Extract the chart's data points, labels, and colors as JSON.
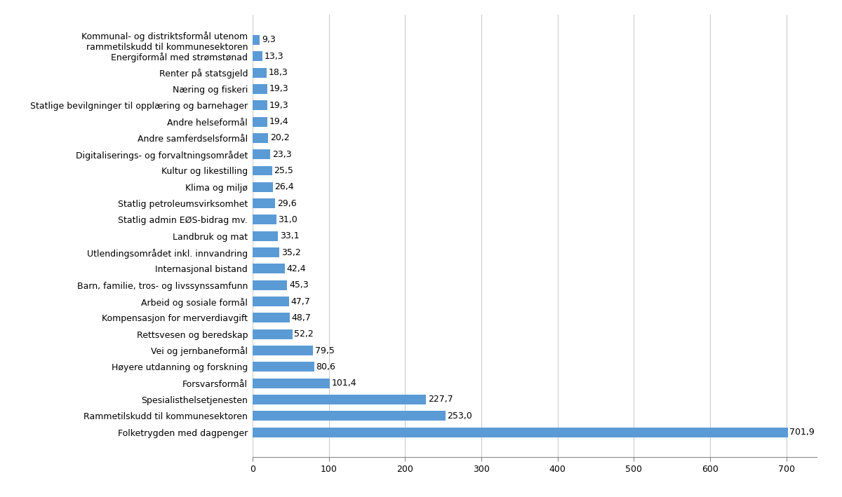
{
  "categories": [
    "Kommunal- og distriktsformål utenom\nrammetilskudd til kommunesektoren",
    "Energiformål med strømstønad",
    "Renter på statsgjeld",
    "Næring og fiskeri",
    "Statlige bevilgninger til opplæring og barnehager",
    "Andre helseformål",
    "Andre samferdselsformål",
    "Digitaliserings- og forvaltningsområdet",
    "Kultur og likestilling",
    "Klima og miljø",
    "Statlig petroleumsvirksomhet",
    "Statlig admin EØS-bidrag mv.",
    "Landbruk og mat",
    "Utlendingsområdet inkl. innvandring",
    "Internasjonal bistand",
    "Barn, familie, tros- og livssynssamfunn",
    "Arbeid og sosiale formål",
    "Kompensasjon for merverdiavgift",
    "Rettsvesen og beredskap",
    "Vei og jernbaneformål",
    "Høyere utdanning og forskning",
    "Forsvarsformål",
    "Spesialisthelsetjenesten",
    "Rammetilskudd til kommunesektoren",
    "Folketrygden med dagpenger"
  ],
  "values": [
    9.3,
    13.3,
    18.3,
    19.3,
    19.3,
    19.4,
    20.2,
    23.3,
    25.5,
    26.4,
    29.6,
    31.0,
    33.1,
    35.2,
    42.4,
    45.3,
    47.7,
    48.7,
    52.2,
    79.5,
    80.6,
    101.4,
    227.7,
    253.0,
    701.9
  ],
  "bar_color": "#5b9bd5",
  "value_label_color": "#000000",
  "background_color": "#ffffff",
  "xlim": [
    0,
    740
  ],
  "xticks": [
    0,
    100,
    200,
    300,
    400,
    500,
    600,
    700
  ],
  "bar_height": 0.6,
  "fontsize_labels": 9.0,
  "fontsize_values": 9.0,
  "fontsize_xticks": 9.0
}
